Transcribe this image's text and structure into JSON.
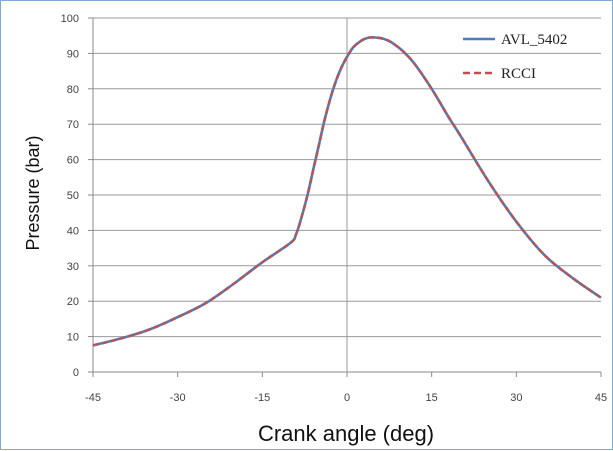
{
  "chart_data": {
    "type": "line",
    "title": "",
    "xlabel": "Crank angle (deg)",
    "ylabel": "Pressure (bar)",
    "xlim": [
      -45,
      45
    ],
    "ylim": [
      0,
      100
    ],
    "x_ticks": [
      -45,
      -30,
      -15,
      0,
      15,
      30,
      45
    ],
    "y_ticks": [
      0,
      10,
      20,
      30,
      40,
      50,
      60,
      70,
      80,
      90,
      100
    ],
    "grid": "horizontal",
    "legend_position": "top-right",
    "series": [
      {
        "name": "AVL_5402",
        "color": "#4a7ebb",
        "style": "solid",
        "x": [
          -45,
          -40,
          -35,
          -30,
          -25,
          -20,
          -15,
          -10,
          -9,
          -8,
          -7,
          -6,
          -5,
          -4,
          -3,
          -2,
          -1,
          0,
          1,
          2,
          3,
          4,
          5,
          6,
          7,
          8,
          10,
          12,
          15,
          18,
          20,
          25,
          30,
          35,
          40,
          45
        ],
        "y": [
          7.5,
          9.5,
          12,
          15.5,
          19.5,
          25,
          31,
          36.5,
          39,
          44,
          50,
          57,
          64,
          71,
          77,
          82,
          86,
          89,
          91.5,
          93,
          94,
          94.5,
          94.5,
          94.3,
          93.8,
          93,
          90.5,
          87,
          80,
          72,
          67,
          54,
          42.5,
          33,
          26.5,
          21
        ]
      },
      {
        "name": "RCCI",
        "color": "#c0504d",
        "style": "dashed",
        "x": [
          -45,
          -40,
          -35,
          -30,
          -25,
          -20,
          -15,
          -10,
          -9,
          -8,
          -7,
          -6,
          -5,
          -4,
          -3,
          -2,
          -1,
          0,
          1,
          2,
          3,
          4,
          5,
          6,
          7,
          8,
          10,
          12,
          15,
          18,
          20,
          25,
          30,
          35,
          40,
          45
        ],
        "y": [
          7.5,
          9.5,
          12,
          15.5,
          19.5,
          25,
          31,
          36.5,
          39,
          44,
          50,
          57,
          64,
          71,
          77,
          82,
          86,
          89,
          91.5,
          93,
          94,
          94.5,
          94.5,
          94.3,
          93.8,
          93,
          90.5,
          87,
          80,
          72,
          67,
          54,
          42.5,
          33,
          26.5,
          21
        ]
      }
    ],
    "overlap_color": "#8a5a78"
  }
}
